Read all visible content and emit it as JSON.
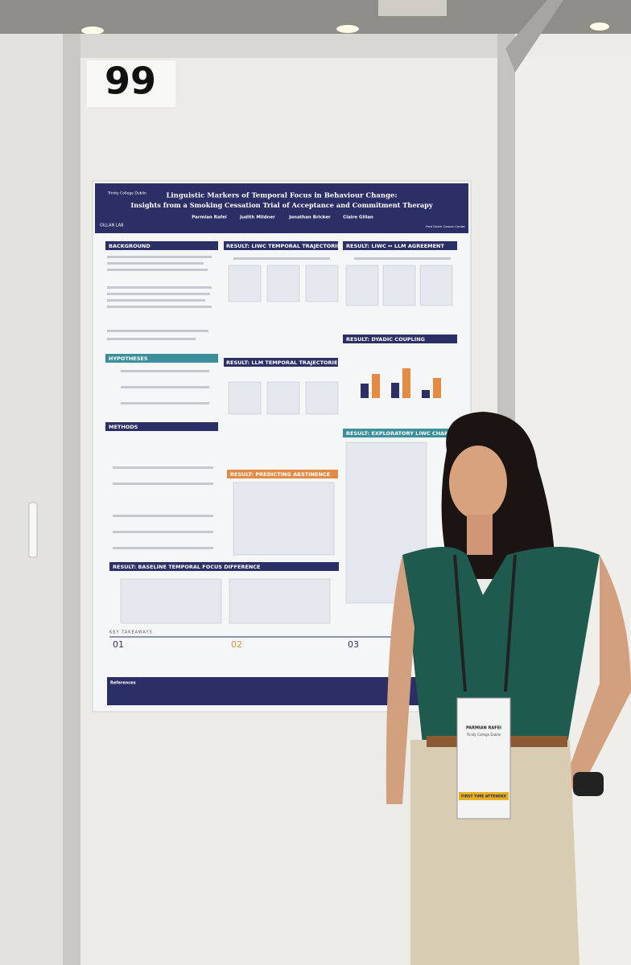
{
  "booth_number": "99",
  "poster": {
    "title_line1": "Linguistic Markers of Temporal Focus in Behaviour Change:",
    "title_line2": "Insights from a Smoking Cessation Trial of Acceptance and Commitment Therapy",
    "authors": [
      "Parmian Rafei",
      "Judith Mildner",
      "Jonathan Bricker",
      "Claire Gillan"
    ],
    "logos": [
      "Trinity College Dublin",
      "GILLAN LAB",
      "Fred Hutch Cancer Center"
    ],
    "sections": [
      "BACKGROUND",
      "HYPOTHESES",
      "METHODS",
      "RESULT: LIWC TEMPORAL TRAJECTORIES",
      "RESULT: LLM TEMPORAL TRAJECTORIES",
      "RESULT: PREDICTING ABSTINENCE",
      "RESULT: BASELINE TEMPORAL FOCUS DIFFERENCE",
      "RESULT: LIWC ↔ LLM AGREEMENT",
      "RESULT: DYADIC COUPLING",
      "RESULT: EXPLORATORY LIWC CHANGE"
    ],
    "key_takeaways": "KEY TAKEAWAYS",
    "takeaway_numbers": [
      "01",
      "02",
      "03"
    ],
    "references": "References"
  },
  "badge": {
    "name": "PARMIAN RAFEI",
    "affiliation": "Trinity College Dublin",
    "ribbon": "FIRST TIME ATTENDEE"
  }
}
